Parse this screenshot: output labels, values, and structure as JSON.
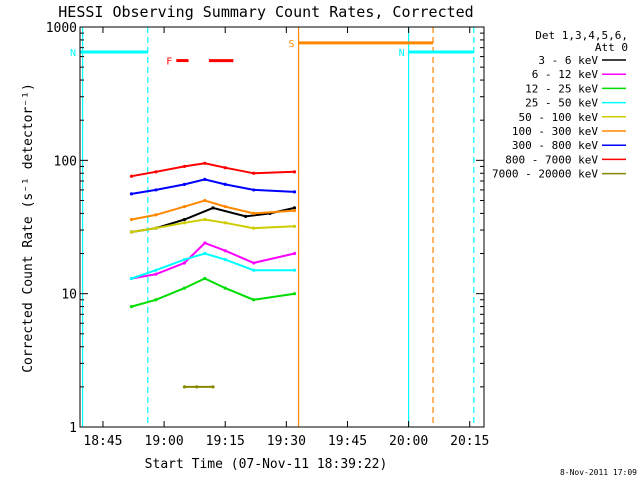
{
  "page": {
    "footer_date": "8-Nov-2011 17:09"
  },
  "chart_data": {
    "type": "line",
    "title": "HESSI Observing Summary Count Rates, Corrected",
    "xlabel": "Start Time (07-Nov-11 18:39:22)",
    "ylabel": "Corrected Count Rate (s⁻¹ detector⁻¹)",
    "y_scale": "log",
    "ylim": [
      1,
      1000
    ],
    "xlim": [
      "18:39:22",
      "20:18:30"
    ],
    "x_ticks": [
      "18:45",
      "19:00",
      "19:15",
      "19:30",
      "19:45",
      "20:00",
      "20:15"
    ],
    "y_ticks": [
      "1",
      "10",
      "100",
      "1000"
    ],
    "legend_header": [
      "Det 1,3,4,5,6,",
      "Att 0"
    ],
    "legend_position": "right",
    "series": [
      {
        "name": "3 - 6 keV",
        "color": "#000000",
        "x": [
          "18:52",
          "18:58",
          "19:05",
          "19:12",
          "19:20",
          "19:26",
          "19:32"
        ],
        "values": [
          29,
          31,
          36,
          44,
          38,
          40,
          44
        ]
      },
      {
        "name": "6 - 12 keV",
        "color": "#ff00ff",
        "x": [
          "18:52",
          "18:58",
          "19:05",
          "19:10",
          "19:15",
          "19:22",
          "19:32"
        ],
        "values": [
          13,
          14,
          17,
          24,
          21,
          17,
          20
        ]
      },
      {
        "name": "12 - 25 keV",
        "color": "#00dd00",
        "x": [
          "18:52",
          "18:58",
          "19:05",
          "19:10",
          "19:15",
          "19:22",
          "19:32"
        ],
        "values": [
          8,
          9,
          11,
          13,
          11,
          9,
          10
        ]
      },
      {
        "name": "25 - 50 keV",
        "color": "#00ffff",
        "x": [
          "18:52",
          "18:58",
          "19:05",
          "19:10",
          "19:15",
          "19:22",
          "19:32"
        ],
        "values": [
          13,
          15,
          18,
          20,
          18,
          15,
          15
        ]
      },
      {
        "name": "50 - 100 keV",
        "color": "#cccc00",
        "x": [
          "18:52",
          "18:58",
          "19:05",
          "19:10",
          "19:15",
          "19:22",
          "19:32"
        ],
        "values": [
          29,
          31,
          34,
          36,
          34,
          31,
          32
        ]
      },
      {
        "name": "100 - 300 keV",
        "color": "#ff8800",
        "x": [
          "18:52",
          "18:58",
          "19:05",
          "19:10",
          "19:15",
          "19:22",
          "19:32"
        ],
        "values": [
          36,
          39,
          45,
          50,
          45,
          40,
          42
        ]
      },
      {
        "name": "300 - 800 keV",
        "color": "#0000ff",
        "x": [
          "18:52",
          "18:58",
          "19:05",
          "19:10",
          "19:15",
          "19:22",
          "19:32"
        ],
        "values": [
          56,
          60,
          66,
          72,
          66,
          60,
          58
        ]
      },
      {
        "name": "800 - 7000 keV",
        "color": "#ff0000",
        "x": [
          "18:52",
          "18:58",
          "19:05",
          "19:10",
          "19:15",
          "19:22",
          "19:32"
        ],
        "values": [
          76,
          82,
          90,
          95,
          88,
          80,
          82
        ]
      },
      {
        "name": "7000 - 20000 keV",
        "color": "#888800",
        "x": [
          "19:05",
          "19:08",
          "19:12"
        ],
        "values": [
          2,
          2,
          2
        ]
      }
    ],
    "flags": [
      {
        "label": "N",
        "color": "#00ffff",
        "start": "18:39:22",
        "end": "18:56",
        "level": 650
      },
      {
        "label": "N",
        "color": "#00ffff",
        "start": "20:00",
        "end": "20:16",
        "level": 650
      },
      {
        "label": "S",
        "color": "#ff8800",
        "start": "19:33",
        "end": "20:06",
        "level": 760
      },
      {
        "label": "F",
        "color": "#ff0000",
        "start": "19:03",
        "end": "19:06",
        "level": 560
      },
      {
        "label": "",
        "color": "#ff0000",
        "start": "19:11",
        "end": "19:17",
        "level": 560
      }
    ],
    "vertical_markers": [
      {
        "time": "18:40",
        "color": "#00ffff",
        "style": "solid"
      },
      {
        "time": "18:56",
        "color": "#00ffff",
        "style": "dashed"
      },
      {
        "time": "19:33",
        "color": "#ff8800",
        "style": "solid"
      },
      {
        "time": "20:00",
        "color": "#00ffff",
        "style": "solid"
      },
      {
        "time": "20:06",
        "color": "#ff8800",
        "style": "dashed"
      },
      {
        "time": "20:16",
        "color": "#00ffff",
        "style": "dashed"
      }
    ],
    "grid": false
  }
}
